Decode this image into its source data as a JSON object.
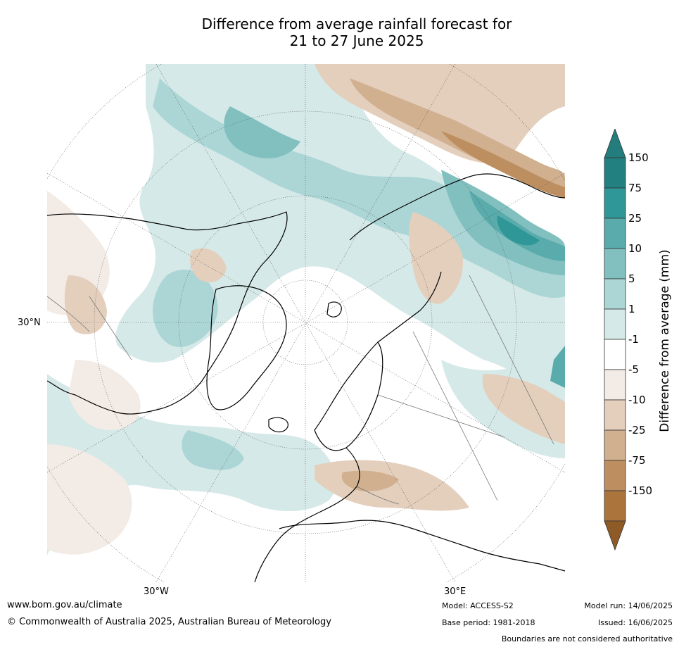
{
  "title": {
    "line1": "Difference from average rainfall forecast for",
    "line2": "21 to 27 June 2025"
  },
  "map_labels": {
    "lat_30n": "30°N",
    "lon_30w": "30°W",
    "lon_30e": "30°E"
  },
  "colorbar": {
    "label": "Difference from average (mm)",
    "ticks": [
      "150",
      "75",
      "25",
      "10",
      "5",
      "1",
      "-1",
      "-5",
      "-10",
      "-25",
      "-75",
      "-150"
    ],
    "colors": [
      "#238080",
      "#2f9797",
      "#5aabab",
      "#82c0c0",
      "#acd6d6",
      "#d5e9e8",
      "#ffffff",
      "#f3ebe5",
      "#e4cfbd",
      "#d1b08f",
      "#bd8f60",
      "#ab743d"
    ],
    "extend_high": "#237d7d",
    "extend_low": "#8e5a26"
  },
  "footer": {
    "website": "www.bom.gov.au/climate",
    "copyright": "© Commonwealth of Australia 2025, Australian Bureau of Meteorology",
    "model": "Model: ACCESS-S2",
    "base_period": "Base period: 1981-2018",
    "model_run": "Model run: 14/06/2025",
    "issued": "Issued: 16/06/2025",
    "boundaries": "Boundaries are not considered authoritative"
  }
}
